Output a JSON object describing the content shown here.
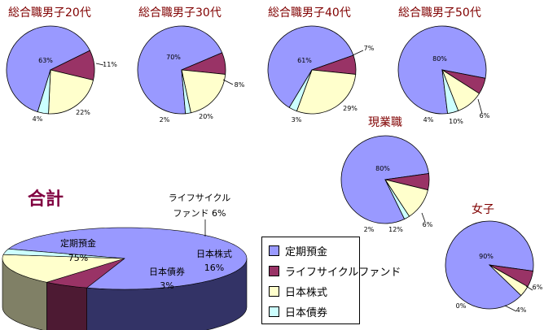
{
  "chart_data": [
    {
      "type": "pie",
      "title": "総合職男子20代",
      "categories": [
        "定期預金",
        "ライフサイクルファンド",
        "日本株式",
        "日本債券"
      ],
      "values": [
        63,
        11,
        22,
        4
      ],
      "labels": [
        "63%",
        "11%",
        "22%",
        "4%"
      ]
    },
    {
      "type": "pie",
      "title": "総合職男子30代",
      "categories": [
        "定期預金",
        "ライフサイクルファンド",
        "日本株式",
        "日本債券"
      ],
      "values": [
        70,
        8,
        20,
        2
      ],
      "labels": [
        "70%",
        "8%",
        "20%",
        "2%"
      ]
    },
    {
      "type": "pie",
      "title": "総合職男子40代",
      "categories": [
        "定期預金",
        "ライフサイクルファンド",
        "日本株式",
        "日本債券"
      ],
      "values": [
        61,
        7,
        29,
        3
      ],
      "labels": [
        "61%",
        "7%",
        "29%",
        "3%"
      ]
    },
    {
      "type": "pie",
      "title": "総合職男子50代",
      "categories": [
        "定期預金",
        "ライフサイクルファンド",
        "日本株式",
        "日本債券"
      ],
      "values": [
        80,
        6,
        10,
        4
      ],
      "labels": [
        "80%",
        "6%",
        "10%",
        "4%"
      ]
    },
    {
      "type": "pie",
      "title": "現業職",
      "categories": [
        "定期預金",
        "ライフサイクルファンド",
        "日本株式",
        "日本債券"
      ],
      "values": [
        80,
        6,
        12,
        2
      ],
      "labels": [
        "80%",
        "6%",
        "12%",
        "2%"
      ]
    },
    {
      "type": "pie",
      "title": "女子",
      "categories": [
        "定期預金",
        "ライフサイクルファンド",
        "日本株式",
        "日本債券"
      ],
      "values": [
        90,
        6,
        4,
        0
      ],
      "labels": [
        "90%",
        "6%",
        "4%",
        "0%"
      ]
    },
    {
      "type": "pie",
      "title": "合計",
      "style": "3d",
      "categories": [
        "定期預金",
        "ライフサイクルファンド",
        "日本株式",
        "日本債券"
      ],
      "values": [
        75,
        6,
        16,
        3
      ],
      "labels": [
        [
          "定期預金",
          "75%"
        ],
        [
          "ライフサイクル",
          "ファンド 6%"
        ],
        [
          "日本株式",
          "16%"
        ],
        [
          "日本債券",
          "3%"
        ]
      ]
    }
  ],
  "legend": [
    {
      "label": "定期預金",
      "color": "#9999ff"
    },
    {
      "label": "ライフサイクルファンド",
      "color": "#993366"
    },
    {
      "label": "日本株式",
      "color": "#ffffcc"
    },
    {
      "label": "日本債券",
      "color": "#ccffff"
    }
  ]
}
